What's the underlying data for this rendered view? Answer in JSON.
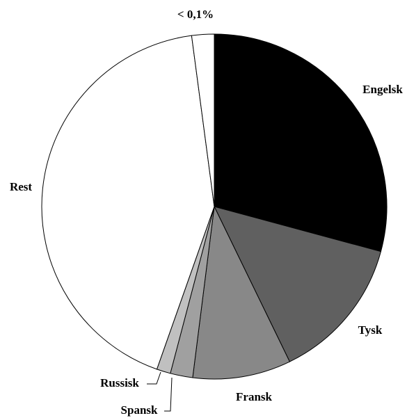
{
  "chart_data": {
    "type": "pie",
    "categories": [
      "Engelsk",
      "Tysk",
      "Fransk",
      "Spansk",
      "Russisk",
      "Rest",
      "< 0,1%"
    ],
    "values": [
      29.2,
      13.6,
      9.2,
      2.1,
      1.3,
      42.5,
      2.1
    ],
    "colors": [
      "#000000",
      "#606060",
      "#888888",
      "#a0a0a0",
      "#c0c0c0",
      "#ffffff",
      "#ffffff"
    ]
  }
}
